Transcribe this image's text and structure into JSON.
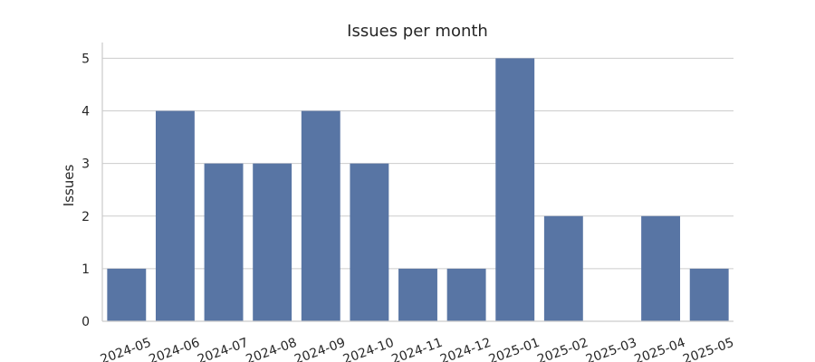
{
  "chart_data": {
    "type": "bar",
    "title": "Issues per month",
    "xlabel": "",
    "ylabel": "Issues",
    "categories": [
      "2024-05",
      "2024-06",
      "2024-07",
      "2024-08",
      "2024-09",
      "2024-10",
      "2024-11",
      "2024-12",
      "2025-01",
      "2025-02",
      "2025-03",
      "2025-04",
      "2025-05"
    ],
    "values": [
      1,
      4,
      3,
      3,
      4,
      3,
      1,
      1,
      5,
      2,
      0,
      2,
      1
    ],
    "ylim": [
      0,
      5.3
    ],
    "yticks": [
      0,
      1,
      2,
      3,
      4,
      5
    ],
    "grid": "horizontal",
    "bar_color": "#5875a4"
  }
}
